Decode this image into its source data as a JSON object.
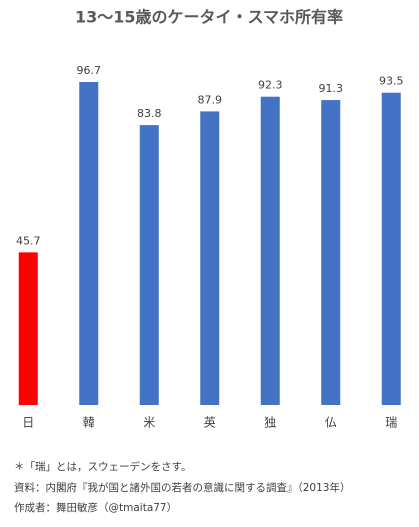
{
  "chart_data": {
    "type": "bar",
    "title": "13～15歳のケータイ・スマホ所有率",
    "categories": [
      "日",
      "韓",
      "米",
      "英",
      "独",
      "仏",
      "瑞"
    ],
    "values": [
      45.7,
      96.7,
      83.8,
      87.9,
      92.3,
      91.3,
      93.5
    ],
    "colors": [
      "#ff0000",
      "#4472c4",
      "#4472c4",
      "#4472c4",
      "#4472c4",
      "#4472c4",
      "#4472c4"
    ],
    "ylim": [
      0,
      100
    ],
    "notes": [
      "＊「瑞」とは，スウェーデンをさす。",
      "資料：内閣府『我が国と諸外国の若者の意識に関する調査』（2013年）",
      "作成者：舞田敏彦（@tmaita77）"
    ]
  }
}
